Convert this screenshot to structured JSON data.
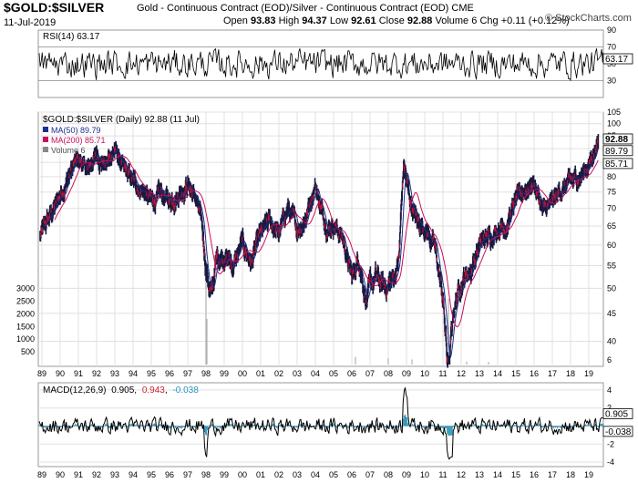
{
  "header": {
    "symbol": "$GOLD:$SILVER",
    "description": "Gold - Continuous Contract (EOD)/Silver - Continuous Contract (EOD) CME",
    "date": "11-Jul-2019",
    "open_label": "Open",
    "open": "93.83",
    "high_label": "High",
    "high": "94.37",
    "low_label": "Low",
    "low": "92.61",
    "close_label": "Close",
    "close": "92.88",
    "volume_label": "Volume",
    "volume": "6",
    "chg_label": "Chg",
    "chg": "+0.11 (+0.12%)",
    "logo": "© StockCharts.com"
  },
  "colors": {
    "price_bar": "#1a1a40",
    "price_red": "#c8102e",
    "ma50": "#1c2f8f",
    "ma200": "#c8105a",
    "rsi_line": "#000000",
    "macd_line": "#000000",
    "macd_signal": "#d02030",
    "macd_hist": "#2a93b8",
    "grid": "#e0e0e0",
    "volume": "#b0b0b0"
  },
  "chart_data": [
    {
      "type": "line",
      "panel": "rsi",
      "label": "RSI(14) 63.17",
      "value": 63.17,
      "ylim": [
        10,
        90
      ],
      "yticks": [
        30,
        50,
        70,
        90
      ],
      "reference_lines": [
        30,
        70
      ]
    },
    {
      "type": "line",
      "panel": "price",
      "label": "$GOLD:$SILVER (Daily) 92.88 (11 Jul)",
      "legend": [
        {
          "name": "MA(50) 89.79",
          "color": "#1c2f8f"
        },
        {
          "name": "MA(200) 85.71",
          "color": "#c8105a"
        },
        {
          "name": "Volume 6",
          "color": "#888888"
        }
      ],
      "scale": "log",
      "ylim": [
        36,
        105
      ],
      "yticks_right": [
        40,
        45,
        50,
        55,
        60,
        65,
        70,
        75,
        80,
        85,
        90,
        95,
        100,
        105
      ],
      "value_tags": [
        {
          "text": "92.88",
          "value": 92.88,
          "style": "bold"
        },
        {
          "text": "89.79",
          "value": 89.79,
          "style": "normal"
        },
        {
          "text": "85.71",
          "value": 85.71,
          "style": "normal"
        }
      ],
      "volume_ticks_left": [
        "3000",
        "2500",
        "2000",
        "1500",
        "1000",
        "500"
      ],
      "volume_tick_values": [
        3000,
        2500,
        2000,
        1500,
        1000,
        500
      ],
      "volume_ylim": [
        0,
        3600
      ],
      "volume_tag": "6",
      "x_labels": [
        "89",
        "90",
        "91",
        "92",
        "93",
        "94",
        "95",
        "96",
        "97",
        "98",
        "99",
        "00",
        "01",
        "02",
        "03",
        "04",
        "05",
        "06",
        "07",
        "08",
        "09",
        "10",
        "11",
        "12",
        "13",
        "14",
        "15",
        "16",
        "17",
        "18",
        "19"
      ],
      "xlim": [
        1988.8,
        2019.8
      ],
      "series": [
        {
          "name": "$GOLD:$SILVER",
          "x": [
            1988.9,
            1989.5,
            1990.0,
            1990.6,
            1991.0,
            1991.5,
            1992.0,
            1992.5,
            1993.0,
            1993.5,
            1994.0,
            1994.5,
            1995.0,
            1995.5,
            1996.0,
            1996.5,
            1997.0,
            1997.5,
            1997.8,
            1998.0,
            1998.3,
            1998.6,
            1999.0,
            1999.5,
            2000.0,
            2000.5,
            2001.0,
            2001.5,
            2002.0,
            2002.5,
            2003.0,
            2003.5,
            2004.0,
            2004.3,
            2004.7,
            2005.0,
            2005.5,
            2006.0,
            2006.4,
            2006.8,
            2007.3,
            2007.8,
            2008.3,
            2008.6,
            2008.85,
            2009.2,
            2009.6,
            2010.0,
            2010.5,
            2011.0,
            2011.3,
            2011.6,
            2012.0,
            2012.5,
            2013.0,
            2013.5,
            2014.0,
            2014.5,
            2015.0,
            2015.5,
            2016.0,
            2016.5,
            2017.0,
            2017.5,
            2018.0,
            2018.5,
            2019.0,
            2019.53
          ],
          "y": [
            62,
            68,
            74,
            82,
            86,
            82,
            88,
            84,
            90,
            82,
            78,
            76,
            72,
            74,
            72,
            75,
            78,
            72,
            64,
            55,
            48,
            57,
            58,
            55,
            60,
            56,
            62,
            66,
            63,
            70,
            64,
            68,
            78,
            70,
            65,
            66,
            62,
            52,
            57,
            48,
            52,
            50,
            52,
            57,
            84,
            72,
            66,
            65,
            60,
            48,
            33,
            46,
            52,
            54,
            60,
            62,
            65,
            66,
            72,
            76,
            78,
            69,
            71,
            76,
            78,
            80,
            84,
            92.88
          ]
        },
        {
          "name": "MA(50)",
          "value": 89.79
        },
        {
          "name": "MA(200)",
          "value": 85.71
        }
      ]
    },
    {
      "type": "line",
      "panel": "macd",
      "label_prefix": "MACD(12,26,9)",
      "macd": "0.905",
      "signal": "0.943",
      "histogram": "-0.038",
      "ylim": [
        -4.5,
        4.8
      ],
      "yticks": [
        4,
        2,
        -2,
        -4
      ],
      "value_tags": [
        "0.905",
        "-0.038"
      ]
    }
  ]
}
